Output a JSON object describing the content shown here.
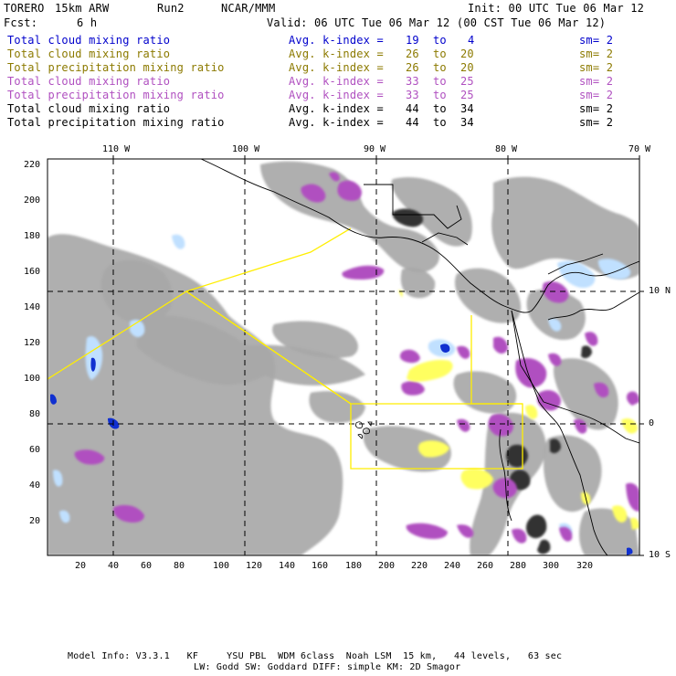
{
  "header": {
    "model": "TORERO",
    "resolution": "15km ARW",
    "run": "Run2",
    "org": "NCAR/MMM",
    "init": "Init: 00 UTC Tue 06 Mar 12",
    "fcst_label": "Fcst:",
    "fcst_value": "6 h",
    "valid": "Valid: 06 UTC Tue 06 Mar 12 (00 CST Tue 06 Mar 12)"
  },
  "legend": [
    {
      "label": "Total cloud mixing ratio",
      "kindex": "Avg. k-index =",
      "from": "19",
      "to_word": "to",
      "to": "4",
      "sm": "sm= 2",
      "color": "#0000cc"
    },
    {
      "label": "Total cloud mixing ratio",
      "kindex": "Avg. k-index =",
      "from": "26",
      "to_word": "to",
      "to": "20",
      "sm": "sm= 2",
      "color": "#8c7a00"
    },
    {
      "label": "Total precipitation mixing ratio",
      "kindex": "Avg. k-index =",
      "from": "26",
      "to_word": "to",
      "to": "20",
      "sm": "sm= 2",
      "color": "#8c7a00"
    },
    {
      "label": "Total cloud mixing ratio",
      "kindex": "Avg. k-index =",
      "from": "33",
      "to_word": "to",
      "to": "25",
      "sm": "sm= 2",
      "color": "#b050c0"
    },
    {
      "label": "Total precipitation mixing ratio",
      "kindex": "Avg. k-index =",
      "from": "33",
      "to_word": "to",
      "to": "25",
      "sm": "sm= 2",
      "color": "#b050c0"
    },
    {
      "label": "Total cloud mixing ratio",
      "kindex": "Avg. k-index =",
      "from": "44",
      "to_word": "to",
      "to": "34",
      "sm": "sm= 2",
      "color": "#000000"
    },
    {
      "label": "Total precipitation mixing ratio",
      "kindex": "Avg. k-index =",
      "from": "44",
      "to_word": "to",
      "to": "34",
      "sm": "sm= 2",
      "color": "#000000"
    }
  ],
  "map": {
    "lon_labels": [
      "110 W",
      "100 W",
      "90 W",
      "80 W",
      "70 W"
    ],
    "lat_labels": [
      "10 N",
      "0",
      "10 S"
    ],
    "x_ticks": [
      "20",
      "40",
      "60",
      "80",
      "100",
      "120",
      "140",
      "160",
      "180",
      "200",
      "220",
      "240",
      "260",
      "280",
      "300",
      "320"
    ],
    "y_ticks": [
      "220",
      "200",
      "180",
      "160",
      "140",
      "120",
      "100",
      "80",
      "60",
      "40",
      "20"
    ],
    "colors": {
      "cloud_gray": "#a8a8a8",
      "cloud_dark": "#303030",
      "purple": "#b050c0",
      "yellow": "#ffff60",
      "light_blue": "#c0e0ff",
      "blue": "#1030d0",
      "boundary": "#ffee00"
    }
  },
  "footer": {
    "line1": "Model Info: V3.3.1   KF     YSU PBL  WDM 6class  Noah LSM  15 km,   44 levels,   63 sec",
    "line2": "LW: Godd SW: Goddard DIFF: simple KM: 2D Smagor"
  }
}
